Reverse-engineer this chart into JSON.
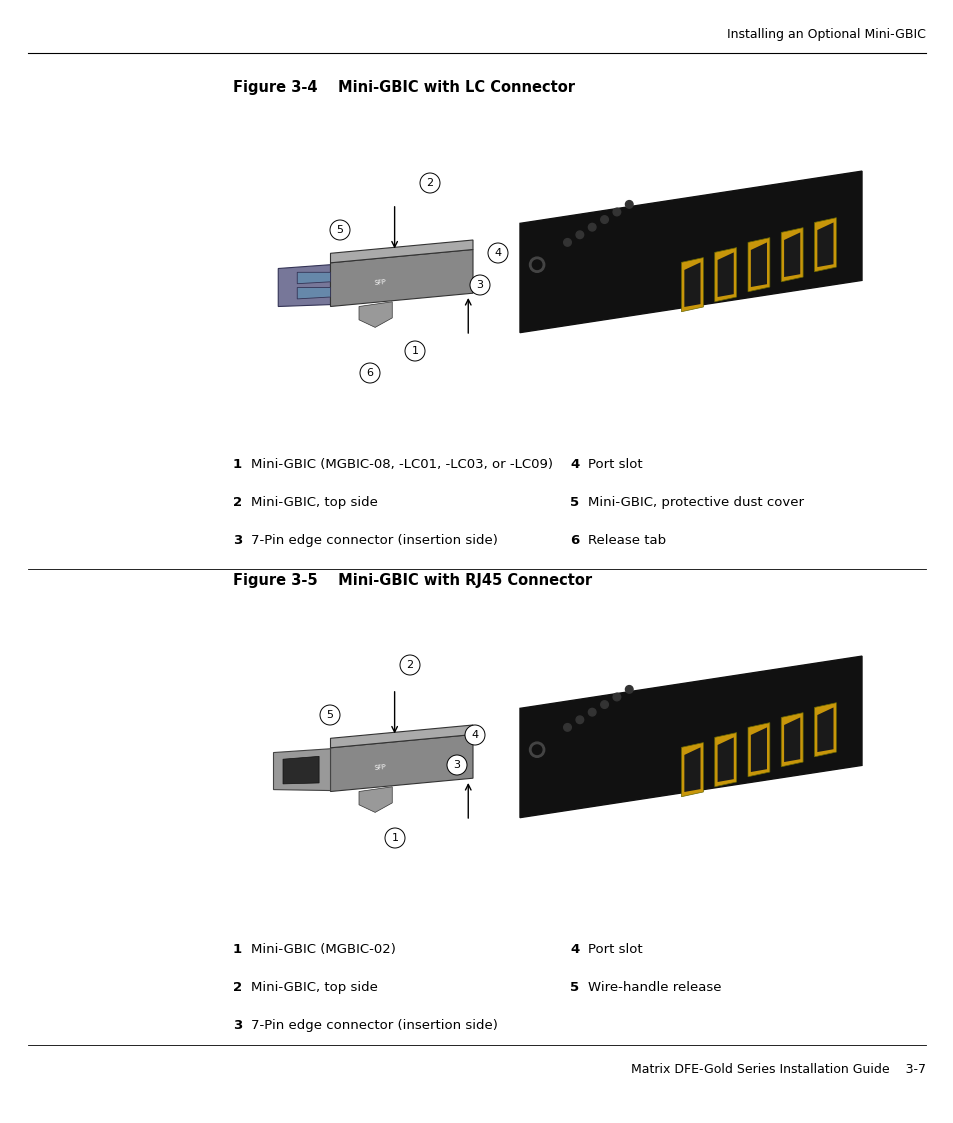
{
  "bg_color": "#ffffff",
  "header_text": "Installing an Optional Mini-GBIC",
  "fig1_title": "Figure 3-4    Mini-GBIC with LC Connector",
  "fig2_title": "Figure 3-5    Mini-GBIC with RJ45 Connector",
  "fig1_labels_left": [
    [
      "1",
      "Mini-GBIC (MGBIC-08, -LC01, -LC03, or -LC09)"
    ],
    [
      "2",
      "Mini-GBIC, top side"
    ],
    [
      "3",
      "7-Pin edge connector (insertion side)"
    ]
  ],
  "fig1_labels_right": [
    [
      "4",
      "Port slot"
    ],
    [
      "5",
      "Mini-GBIC, protective dust cover"
    ],
    [
      "6",
      "Release tab"
    ]
  ],
  "fig2_labels_left": [
    [
      "1",
      "Mini-GBIC (MGBIC-02)"
    ],
    [
      "2",
      "Mini-GBIC, top side"
    ],
    [
      "3",
      "7-Pin edge connector (insertion side)"
    ]
  ],
  "fig2_labels_right": [
    [
      "4",
      "Port slot"
    ],
    [
      "5",
      "Wire-handle release"
    ]
  ],
  "footer_text": "Matrix DFE-Gold Series Installation Guide    3-7",
  "label_fontsize": 9.5,
  "title_fontsize": 10.5,
  "header_fontsize": 9,
  "footer_fontsize": 9
}
